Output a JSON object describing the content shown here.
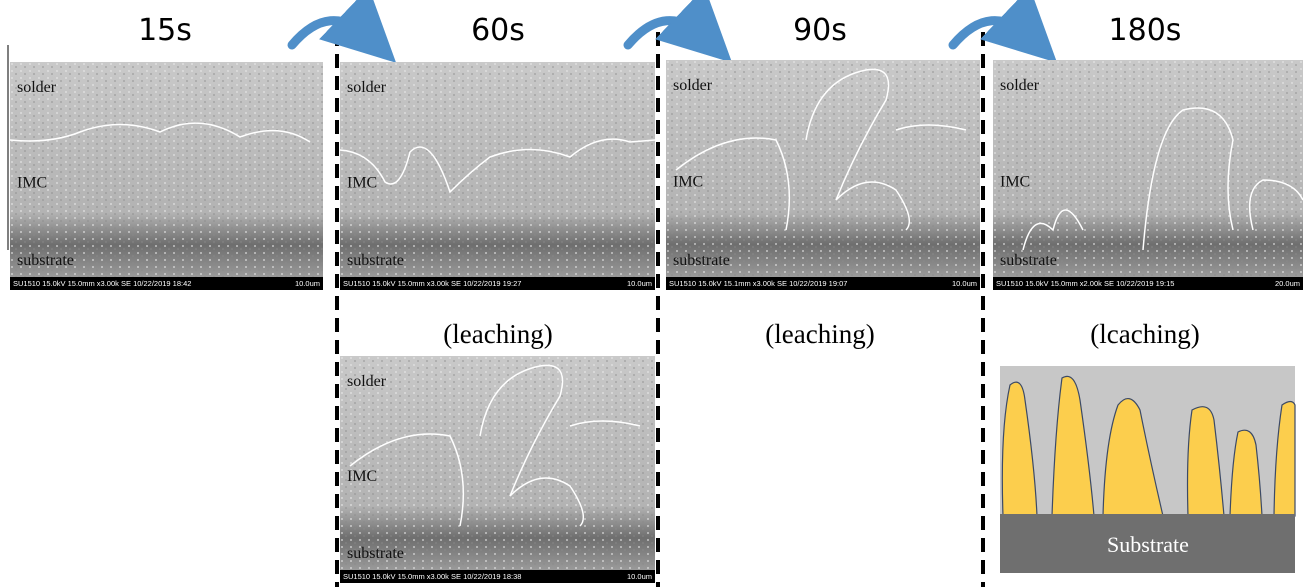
{
  "columns": [
    {
      "time": "15s",
      "images": [
        {
          "labels": [
            "solder",
            "IMC",
            "substrate"
          ],
          "info": "SU1510 15.0kV 15.0mm x3.00k SE  10/22/2019 18:42",
          "scale": "10.0um"
        }
      ]
    },
    {
      "time": "60s",
      "note": "(leaching)",
      "images": [
        {
          "labels": [
            "solder",
            "IMC",
            "substrate"
          ],
          "info": "SU1510 15.0kV 15.0mm x3.00k SE  10/22/2019 19:27",
          "scale": "10.0um"
        },
        {
          "labels": [
            "solder",
            "IMC",
            "substrate"
          ],
          "info": "SU1510 15.0kV 15.0mm x3.00k SE  10/22/2019 18:38",
          "scale": "10.0um"
        }
      ]
    },
    {
      "time": "90s",
      "note": "(leaching)",
      "images": [
        {
          "labels": [
            "solder",
            "IMC",
            "substrate"
          ],
          "info": "SU1510 15.0kV 15.1mm x3.00k SE  10/22/2019 19:07",
          "scale": "10.0um"
        }
      ]
    },
    {
      "time": "180s",
      "note": "(lcaching)",
      "images": [
        {
          "labels": [
            "solder",
            "IMC",
            "substrate"
          ],
          "info": "SU1510 15.0kV 15.0mm x2.00k SE  10/22/2019 19:15",
          "scale": "20.0um"
        }
      ]
    }
  ],
  "schematic": {
    "label": "Substrate"
  }
}
